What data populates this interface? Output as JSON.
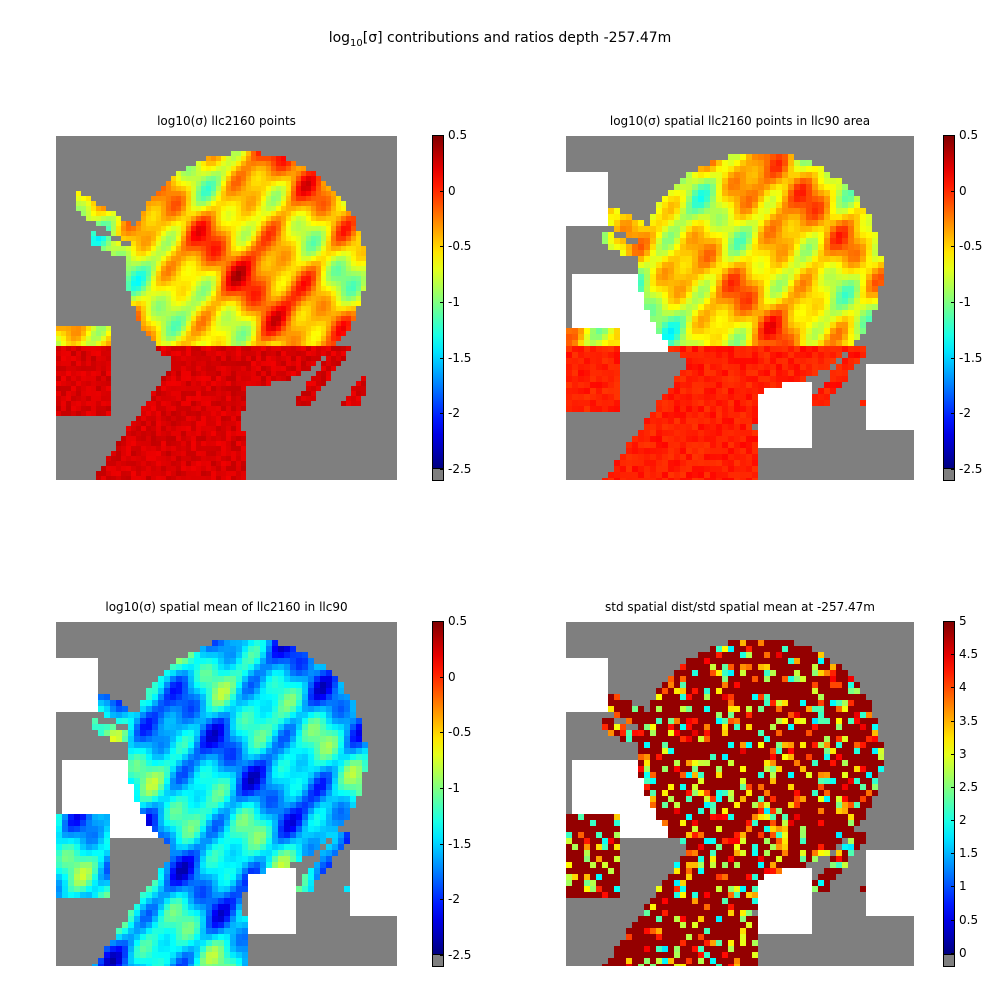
{
  "figure": {
    "title_prefix": "log",
    "title_sub": "10",
    "title_rest": "[σ] contributions and ratios     depth -257.47m"
  },
  "colormap": "jet",
  "colors": {
    "land": "#7f7f7f",
    "missing": "#ffffff"
  },
  "chart_data": [
    {
      "type": "heatmap",
      "title": "log10(σ) llc2160 points",
      "colorbar_ticks": [
        "0.5",
        "0",
        "-0.5",
        "-1",
        "-1.5",
        "-2",
        "-2.5"
      ],
      "clim": [
        -2.6,
        0.5
      ],
      "dominant_range": [
        -1.5,
        0.2
      ]
    },
    {
      "type": "heatmap",
      "title": "log10(σ) spatial llc2160 points in llc90 area",
      "colorbar_ticks": [
        "0.5",
        "0",
        "-0.5",
        "-1",
        "-1.5",
        "-2",
        "-2.5"
      ],
      "clim": [
        -2.6,
        0.5
      ],
      "dominant_range": [
        -1.5,
        0.0
      ]
    },
    {
      "type": "heatmap",
      "title": "log10(σ) spatial mean of llc2160 in llc90",
      "colorbar_ticks": [
        "0.5",
        "0",
        "-0.5",
        "-1",
        "-1.5",
        "-2",
        "-2.5"
      ],
      "clim": [
        -2.6,
        0.5
      ],
      "dominant_range": [
        -2.5,
        -0.7
      ]
    },
    {
      "type": "heatmap",
      "title": "std spatial dist/std spatial mean at -257.47m",
      "colorbar_ticks": [
        "5",
        "4.5",
        "4",
        "3.5",
        "3",
        "2.5",
        "2",
        "1.5",
        "1",
        "0.5",
        "0"
      ],
      "clim": [
        -0.2,
        5
      ],
      "dominant_range": [
        2.5,
        5
      ]
    }
  ]
}
